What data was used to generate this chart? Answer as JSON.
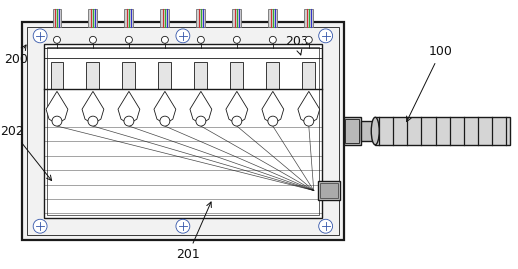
{
  "bg_color": "#ffffff",
  "line_color": "#1a1a1a",
  "blue_color": "#3355aa",
  "light_gray": "#d0d0d0",
  "dark_gray": "#707070",
  "medium_gray": "#aaaaaa",
  "fiber_colors": [
    "#cc3333",
    "#33aa33",
    "#3333cc"
  ],
  "n_pins": 8,
  "label_fontsize": 9,
  "lw_outer": 1.6,
  "lw_inner": 1.0,
  "lw_thin": 0.6
}
